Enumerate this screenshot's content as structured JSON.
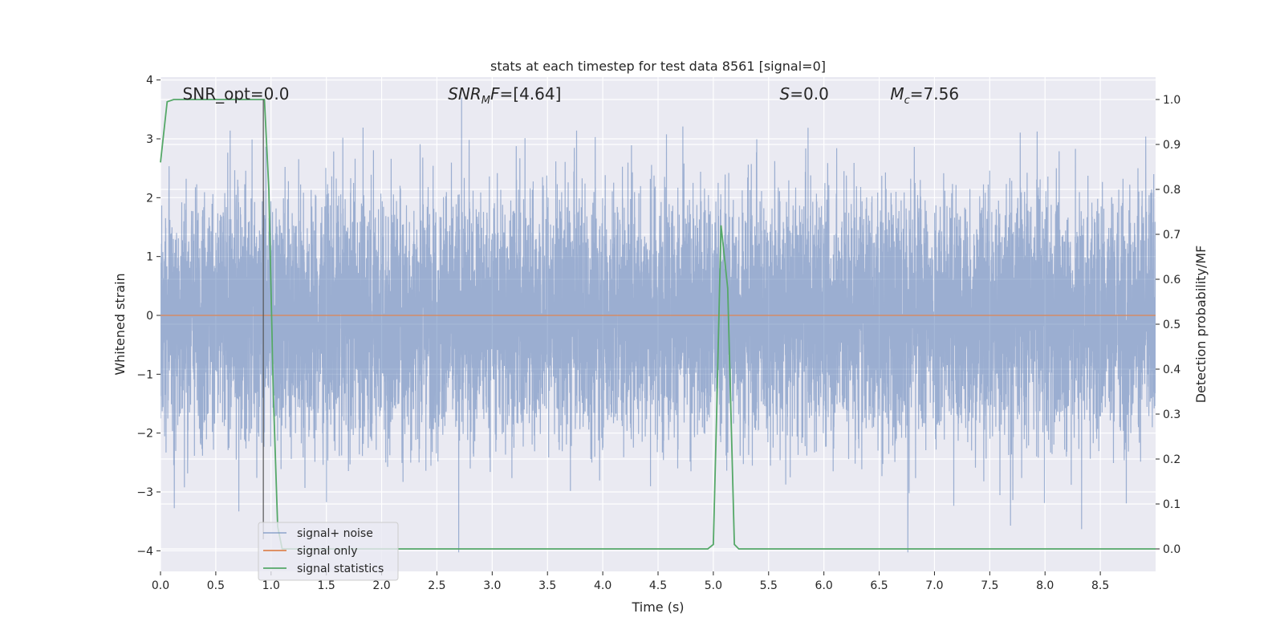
{
  "chart_data": {
    "type": "line",
    "title": "stats at each timestep for test data 8561 [signal=0]",
    "xlabel": "Time (s)",
    "ylabel": "Whitened strain",
    "y2label": "Detection probability/MF",
    "xlim": [
      0.0,
      9.0
    ],
    "ylim": [
      -4.35,
      4.05
    ],
    "y2lim": [
      -0.05,
      1.05
    ],
    "xticks": [
      0.0,
      0.5,
      1.0,
      1.5,
      2.0,
      2.5,
      3.0,
      3.5,
      4.0,
      4.5,
      5.0,
      5.5,
      6.0,
      6.5,
      7.0,
      7.5,
      8.0,
      8.5
    ],
    "yticks": [
      -4,
      -3,
      -2,
      -1,
      0,
      1,
      2,
      3,
      4
    ],
    "y2ticks": [
      0.0,
      0.1,
      0.2,
      0.3,
      0.4,
      0.5,
      0.6,
      0.7,
      0.8,
      0.9,
      1.0
    ],
    "grid": true,
    "legend_position": "lower-left",
    "annotations": [
      {
        "prefix": "SNR_opt=0.0",
        "sub": "",
        "suffix": "",
        "italic": false,
        "x": 0.2
      },
      {
        "prefix": "SNR",
        "sub": "M",
        "suffix": "F=[4.64]",
        "italic": true,
        "x": 2.6
      },
      {
        "prefix": "S",
        "sub": "",
        "suffix": "=0.0",
        "italic": true,
        "x": 5.6
      },
      {
        "prefix": "M",
        "sub": "c",
        "suffix": "=7.56",
        "italic": true,
        "x": 6.6
      }
    ],
    "marker_line_x": 0.93,
    "series": [
      {
        "name": "signal+ noise",
        "color": "#4c72b0",
        "opacity": 0.5,
        "x_range": [
          0.0,
          9.0
        ],
        "sample_count": 9000,
        "amplitude_envelope": [
          -3.5,
          3.7
        ]
      },
      {
        "name": "signal only",
        "color": "#dd8452",
        "x_range": [
          0.0,
          9.0
        ],
        "y": [
          0.0,
          0.0
        ]
      },
      {
        "name": "signal statistics",
        "color": "#55a868",
        "x": [
          0.0,
          0.06,
          0.12,
          0.9,
          0.94,
          0.98,
          1.02,
          1.06,
          1.1,
          4.95,
          5.0,
          5.03,
          5.07,
          5.13,
          5.19,
          5.23,
          9.0
        ],
        "y": [
          0.86,
          0.995,
          1.0,
          1.0,
          1.0,
          0.8,
          0.35,
          0.05,
          0.0,
          0.0,
          0.01,
          0.3,
          0.72,
          0.58,
          0.01,
          0.0,
          0.0
        ]
      }
    ]
  }
}
